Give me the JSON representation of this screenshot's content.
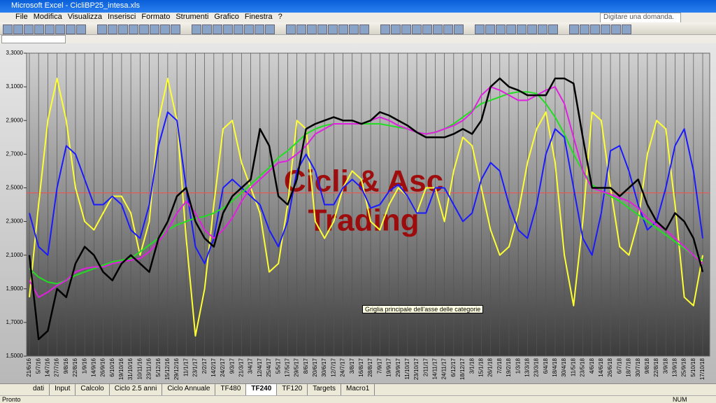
{
  "window": {
    "title": "Microsoft Excel - CicliBP25_intesa.xls",
    "search": "Digitare una domanda."
  },
  "menu": [
    "File",
    "Modifica",
    "Visualizza",
    "Inserisci",
    "Formato",
    "Strumenti",
    "Grafico",
    "Finestra",
    "?"
  ],
  "tabs": [
    "dati",
    "Input",
    "Calcolo",
    "Ciclo 2.5 anni",
    "Ciclo Annuale",
    "TF480",
    "TF240",
    "TF120",
    "Targets",
    "Macro1"
  ],
  "status": {
    "left": "Pronto",
    "right": "NUM"
  },
  "tooltip": "Griglia principale dell'asse delle categorie",
  "chart_data": {
    "type": "line",
    "watermark": [
      "Cicli & Asc",
      "Trading"
    ],
    "categories": [
      "21/6/16",
      "5/7/16",
      "14/7/16",
      "27/7/16",
      "9/8/16",
      "22/8/16",
      "1/9/16",
      "14/9/16",
      "26/9/16",
      "6/10/16",
      "19/10/16",
      "31/10/16",
      "10/11/16",
      "23/11/16",
      "5/12/16",
      "15/12/16",
      "29/12/16",
      "11/1/17",
      "23/1/17",
      "2/2/17",
      "14/2/17",
      "24/2/17",
      "9/3/17",
      "21/3/17",
      "3/4/17",
      "12/4/17",
      "25/4/17",
      "5/5/17",
      "17/5/17",
      "29/5/17",
      "8/6/17",
      "20/6/17",
      "30/6/17",
      "12/7/17",
      "24/7/17",
      "3/8/17",
      "16/8/17",
      "28/8/17",
      "7/9/17",
      "19/9/17",
      "29/9/17",
      "11/10/17",
      "23/10/17",
      "2/11/17",
      "14/11/17",
      "24/11/17",
      "6/12/17",
      "18/12/17",
      "3/1/18",
      "15/1/18",
      "26/1/18",
      "7/2/18",
      "19/2/18",
      "1/3/18",
      "13/3/18",
      "23/3/18",
      "6/4/18",
      "18/4/18",
      "30/4/18",
      "11/5/18",
      "23/5/18",
      "4/6/18",
      "14/6/18",
      "26/6/18",
      "6/7/18",
      "18/7/18",
      "30/7/18",
      "9/8/18",
      "22/8/18",
      "3/9/18",
      "13/9/18",
      "25/9/18",
      "5/10/18",
      "17/10/18"
    ],
    "series": [
      {
        "color": "#ffff33",
        "width": 2,
        "values": [
          1.85,
          2.4,
          2.9,
          3.15,
          2.9,
          2.5,
          2.3,
          2.25,
          2.35,
          2.45,
          2.45,
          2.35,
          2.1,
          2.3,
          2.9,
          3.15,
          2.9,
          2.2,
          1.62,
          1.9,
          2.4,
          2.85,
          2.9,
          2.65,
          2.5,
          2.35,
          2.0,
          2.05,
          2.4,
          2.9,
          2.85,
          2.3,
          2.2,
          2.3,
          2.5,
          2.6,
          2.55,
          2.3,
          2.25,
          2.4,
          2.5,
          2.45,
          2.35,
          2.5,
          2.5,
          2.3,
          2.6,
          2.8,
          2.75,
          2.5,
          2.25,
          2.1,
          2.15,
          2.35,
          2.65,
          2.85,
          2.95,
          2.65,
          2.1,
          1.8,
          2.3,
          2.95,
          2.9,
          2.5,
          2.15,
          2.1,
          2.3,
          2.7,
          2.9,
          2.85,
          2.4,
          1.85,
          1.8,
          2.1
        ]
      },
      {
        "color": "#1a1aff",
        "width": 2,
        "values": [
          2.35,
          2.15,
          2.1,
          2.5,
          2.75,
          2.7,
          2.55,
          2.4,
          2.4,
          2.45,
          2.4,
          2.25,
          2.2,
          2.4,
          2.75,
          2.95,
          2.9,
          2.5,
          2.15,
          2.05,
          2.2,
          2.5,
          2.55,
          2.5,
          2.45,
          2.4,
          2.25,
          2.15,
          2.3,
          2.6,
          2.7,
          2.6,
          2.4,
          2.4,
          2.5,
          2.55,
          2.5,
          2.38,
          2.4,
          2.48,
          2.52,
          2.45,
          2.35,
          2.35,
          2.5,
          2.5,
          2.4,
          2.3,
          2.35,
          2.55,
          2.65,
          2.6,
          2.4,
          2.25,
          2.2,
          2.4,
          2.7,
          2.85,
          2.8,
          2.5,
          2.2,
          2.1,
          2.35,
          2.72,
          2.75,
          2.6,
          2.4,
          2.25,
          2.3,
          2.5,
          2.75,
          2.85,
          2.6,
          2.2
        ]
      },
      {
        "color": "#22dd22",
        "width": 2,
        "values": [
          2.02,
          1.97,
          1.94,
          1.93,
          1.95,
          1.98,
          2.0,
          2.02,
          2.04,
          2.06,
          2.07,
          2.08,
          2.12,
          2.16,
          2.2,
          2.25,
          2.28,
          2.3,
          2.32,
          2.33,
          2.35,
          2.38,
          2.42,
          2.47,
          2.52,
          2.57,
          2.62,
          2.68,
          2.72,
          2.77,
          2.82,
          2.85,
          2.87,
          2.88,
          2.88,
          2.88,
          2.88,
          2.88,
          2.88,
          2.87,
          2.86,
          2.85,
          2.83,
          2.82,
          2.83,
          2.85,
          2.88,
          2.92,
          2.96,
          3.0,
          3.02,
          3.04,
          3.06,
          3.07,
          3.07,
          3.06,
          3.0,
          2.92,
          2.82,
          2.7,
          2.6,
          2.52,
          2.48,
          2.45,
          2.42,
          2.38,
          2.34,
          2.3,
          2.26,
          2.22,
          2.18,
          2.14,
          2.1,
          2.07
        ]
      },
      {
        "color": "#e020e0",
        "width": 2,
        "values": [
          1.95,
          1.85,
          1.88,
          1.92,
          1.95,
          2.0,
          2.02,
          2.03,
          2.03,
          2.05,
          2.06,
          2.07,
          2.08,
          2.12,
          2.18,
          2.25,
          2.35,
          2.42,
          2.35,
          2.25,
          2.2,
          2.25,
          2.32,
          2.42,
          2.5,
          2.55,
          2.6,
          2.65,
          2.66,
          2.7,
          2.75,
          2.82,
          2.85,
          2.88,
          2.88,
          2.88,
          2.88,
          2.9,
          2.92,
          2.9,
          2.87,
          2.85,
          2.83,
          2.82,
          2.83,
          2.85,
          2.87,
          2.9,
          2.95,
          3.05,
          3.1,
          3.08,
          3.05,
          3.02,
          3.02,
          3.05,
          3.08,
          3.1,
          3.0,
          2.8,
          2.6,
          2.5,
          2.48,
          2.46,
          2.44,
          2.42,
          2.38,
          2.32,
          2.28,
          2.25,
          2.2,
          2.15,
          2.1,
          2.05
        ]
      },
      {
        "color": "#000000",
        "width": 2.5,
        "values": [
          2.1,
          1.6,
          1.65,
          1.9,
          1.85,
          2.05,
          2.15,
          2.1,
          2.0,
          1.95,
          2.05,
          2.1,
          2.05,
          2.0,
          2.2,
          2.3,
          2.45,
          2.5,
          2.3,
          2.2,
          2.15,
          2.35,
          2.45,
          2.5,
          2.55,
          2.85,
          2.75,
          2.45,
          2.4,
          2.55,
          2.85,
          2.88,
          2.9,
          2.92,
          2.9,
          2.9,
          2.88,
          2.9,
          2.95,
          2.93,
          2.9,
          2.87,
          2.83,
          2.8,
          2.8,
          2.8,
          2.82,
          2.85,
          2.82,
          2.9,
          3.1,
          3.15,
          3.1,
          3.08,
          3.05,
          3.05,
          3.05,
          3.15,
          3.15,
          3.12,
          2.8,
          2.5,
          2.5,
          2.5,
          2.45,
          2.5,
          2.55,
          2.4,
          2.3,
          2.25,
          2.35,
          2.3,
          2.2,
          2.0
        ]
      }
    ],
    "reference_line": {
      "value": 2.47,
      "color": "#e05a5a"
    },
    "ylim": [
      1.5,
      3.3
    ],
    "yticks": [
      {
        "value": 1.5,
        "label": "1,5000"
      },
      {
        "value": 1.7,
        "label": "1,7000"
      },
      {
        "value": 1.9,
        "label": "1,9000"
      },
      {
        "value": 2.1,
        "label": "2,1000"
      },
      {
        "value": 2.3,
        "label": "2,3000"
      },
      {
        "value": 2.5,
        "label": "2,5000"
      },
      {
        "value": 2.7,
        "label": "2,7000"
      },
      {
        "value": 2.9,
        "label": "2,9000"
      },
      {
        "value": 3.1,
        "label": "3,1000"
      },
      {
        "value": 3.3,
        "label": "3,3000"
      }
    ],
    "grid": true
  }
}
